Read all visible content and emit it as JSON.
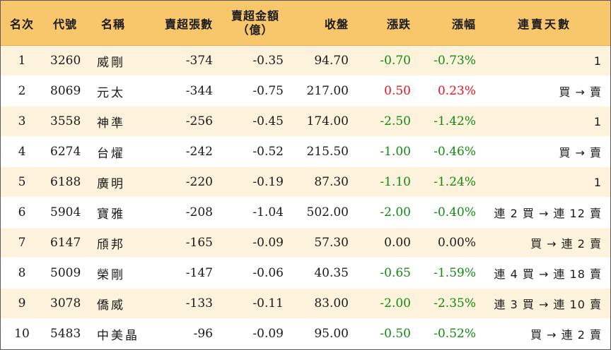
{
  "headers": {
    "rank": "名次",
    "code": "代號",
    "name": "名稱",
    "vol": "賣超張數",
    "amt_line1": "賣超金額",
    "amt_line2": "（億）",
    "close": "收盤",
    "chg": "漲跌",
    "pct": "漲幅",
    "days": "連賣天數"
  },
  "colors": {
    "header_bg": "#f8c76c",
    "stripe_bg": "#fdf3dc",
    "down": "#128a12",
    "up": "#e8141c"
  },
  "rows": [
    {
      "rank": "1",
      "code": "3260",
      "name": "威剛",
      "vol": "-374",
      "amt": "-0.35",
      "close": "94.70",
      "chg": "-0.70",
      "pct": "-0.73%",
      "dir": "green",
      "days": "1"
    },
    {
      "rank": "2",
      "code": "8069",
      "name": "元太",
      "vol": "-344",
      "amt": "-0.75",
      "close": "217.00",
      "chg": "0.50",
      "pct": "0.23%",
      "dir": "red",
      "days": "買 → 賣"
    },
    {
      "rank": "3",
      "code": "3558",
      "name": "神準",
      "vol": "-256",
      "amt": "-0.45",
      "close": "174.00",
      "chg": "-2.50",
      "pct": "-1.42%",
      "dir": "green",
      "days": "1"
    },
    {
      "rank": "4",
      "code": "6274",
      "name": "台燿",
      "vol": "-242",
      "amt": "-0.52",
      "close": "215.50",
      "chg": "-1.00",
      "pct": "-0.46%",
      "dir": "green",
      "days": "買 → 賣"
    },
    {
      "rank": "5",
      "code": "6188",
      "name": "廣明",
      "vol": "-220",
      "amt": "-0.19",
      "close": "87.30",
      "chg": "-1.10",
      "pct": "-1.24%",
      "dir": "green",
      "days": "1"
    },
    {
      "rank": "6",
      "code": "5904",
      "name": "寶雅",
      "vol": "-208",
      "amt": "-1.04",
      "close": "502.00",
      "chg": "-2.00",
      "pct": "-0.40%",
      "dir": "green",
      "days": "連 2 買 → 連 12 賣"
    },
    {
      "rank": "7",
      "code": "6147",
      "name": "頎邦",
      "vol": "-165",
      "amt": "-0.09",
      "close": "57.30",
      "chg": "0.00",
      "pct": "0.00%",
      "dir": "black",
      "days": "買 → 連 2 賣"
    },
    {
      "rank": "8",
      "code": "5009",
      "name": "榮剛",
      "vol": "-147",
      "amt": "-0.06",
      "close": "40.35",
      "chg": "-0.65",
      "pct": "-1.59%",
      "dir": "green",
      "days": "連 4 買 → 連 18 賣"
    },
    {
      "rank": "9",
      "code": "3078",
      "name": "僑威",
      "vol": "-133",
      "amt": "-0.11",
      "close": "83.00",
      "chg": "-2.00",
      "pct": "-2.35%",
      "dir": "green",
      "days": "連 3 買 → 連 10 賣"
    },
    {
      "rank": "10",
      "code": "5483",
      "name": "中美晶",
      "vol": "-96",
      "amt": "-0.09",
      "close": "95.00",
      "chg": "-0.50",
      "pct": "-0.52%",
      "dir": "green",
      "days": "買 → 連 2 賣"
    }
  ]
}
